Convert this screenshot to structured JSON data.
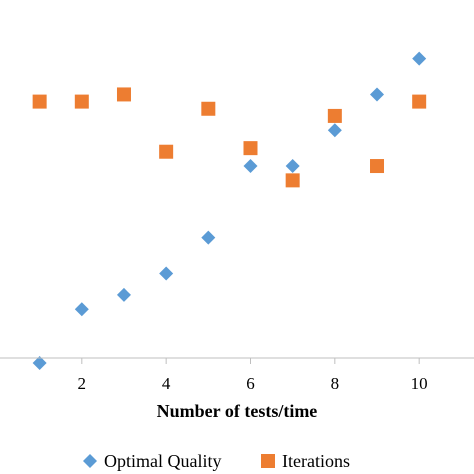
{
  "chart_data": {
    "type": "scatter",
    "title": "",
    "xlabel": "Number of tests/time",
    "ylabel": "",
    "xlim": [
      0.06,
      11.3
    ],
    "ylim": [
      0,
      1
    ],
    "x_ticks": [
      "2",
      "4",
      "6",
      "8",
      "10"
    ],
    "grid": false,
    "legend_position": "bottom",
    "series": [
      {
        "name": "Optimal Quality",
        "marker": "diamond",
        "color": "#5B9BD5",
        "x": [
          1,
          2,
          3,
          4,
          5,
          6,
          7,
          8,
          9,
          10
        ],
        "y": [
          0.07,
          0.22,
          0.26,
          0.32,
          0.42,
          0.62,
          0.62,
          0.72,
          0.82,
          0.92
        ]
      },
      {
        "name": "Iterations",
        "marker": "square",
        "color": "#ED7D31",
        "x": [
          1,
          2,
          3,
          4,
          5,
          6,
          7,
          8,
          9,
          10
        ],
        "y": [
          0.8,
          0.8,
          0.82,
          0.66,
          0.78,
          0.67,
          0.58,
          0.76,
          0.62,
          0.8
        ]
      }
    ]
  }
}
